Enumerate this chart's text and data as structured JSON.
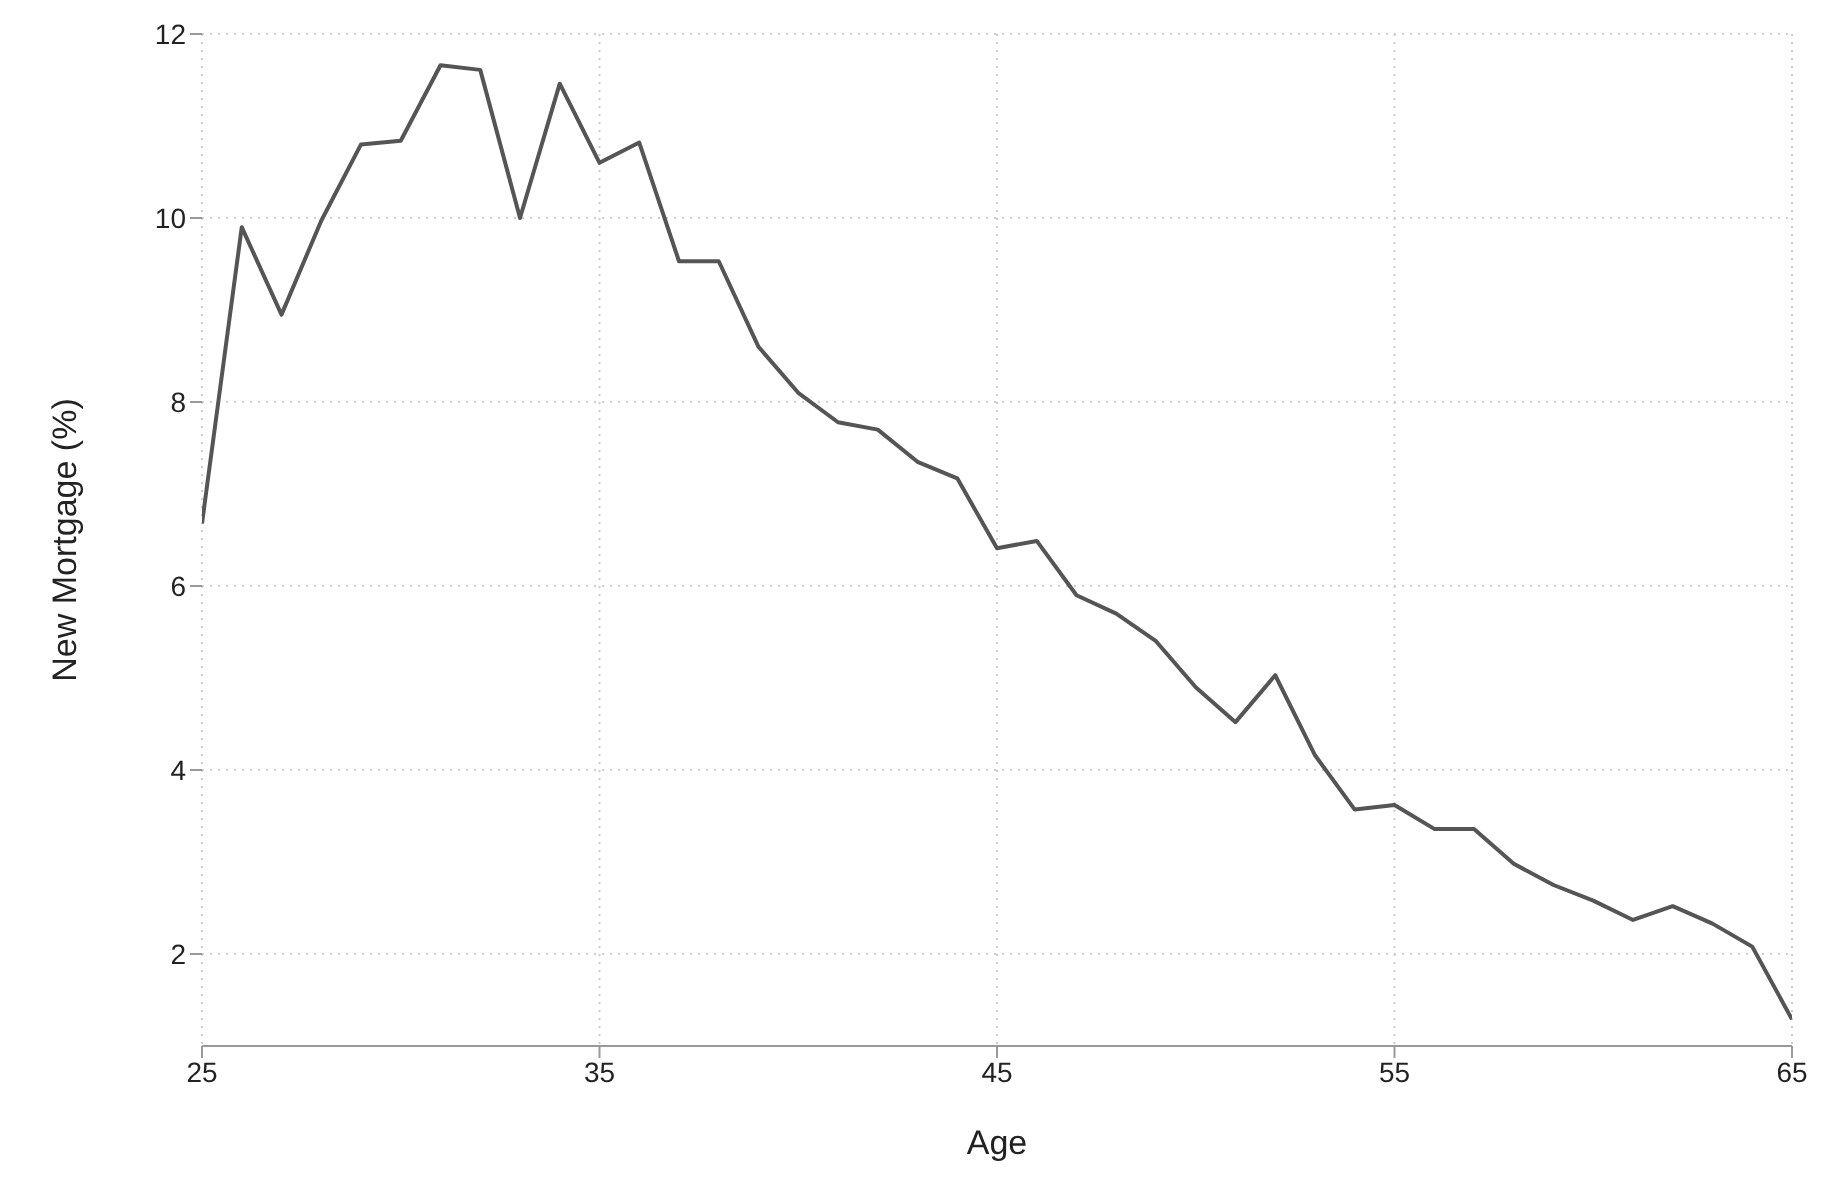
{
  "chart_data": {
    "type": "line",
    "xlabel": "Age",
    "ylabel": "New Mortgage (%)",
    "x": [
      25,
      26,
      27,
      28,
      29,
      30,
      31,
      32,
      33,
      34,
      35,
      36,
      37,
      38,
      39,
      40,
      41,
      42,
      43,
      44,
      45,
      46,
      47,
      48,
      49,
      50,
      51,
      52,
      53,
      54,
      55,
      56,
      57,
      58,
      59,
      60,
      61,
      62,
      63,
      64,
      65
    ],
    "series": [
      {
        "color": "#555555",
        "values": [
          6.68,
          9.9,
          8.95,
          9.97,
          10.8,
          10.84,
          11.66,
          11.61,
          10.0,
          11.46,
          10.6,
          10.82,
          9.53,
          9.53,
          8.6,
          8.1,
          7.78,
          7.7,
          7.35,
          7.17,
          6.41,
          6.49,
          5.9,
          5.7,
          5.4,
          4.9,
          4.52,
          5.03,
          4.16,
          3.57,
          3.62,
          3.36,
          3.36,
          2.98,
          2.75,
          2.58,
          2.37,
          2.52,
          2.33,
          2.08,
          1.29
        ]
      }
    ],
    "xlim": [
      25,
      65
    ],
    "xticks": [
      25,
      35,
      45,
      55,
      65
    ],
    "ylim": [
      1,
      12
    ],
    "yticks": [
      2,
      4,
      6,
      8,
      10,
      12
    ],
    "grid": true,
    "line_style": "solid",
    "marker": "none"
  }
}
